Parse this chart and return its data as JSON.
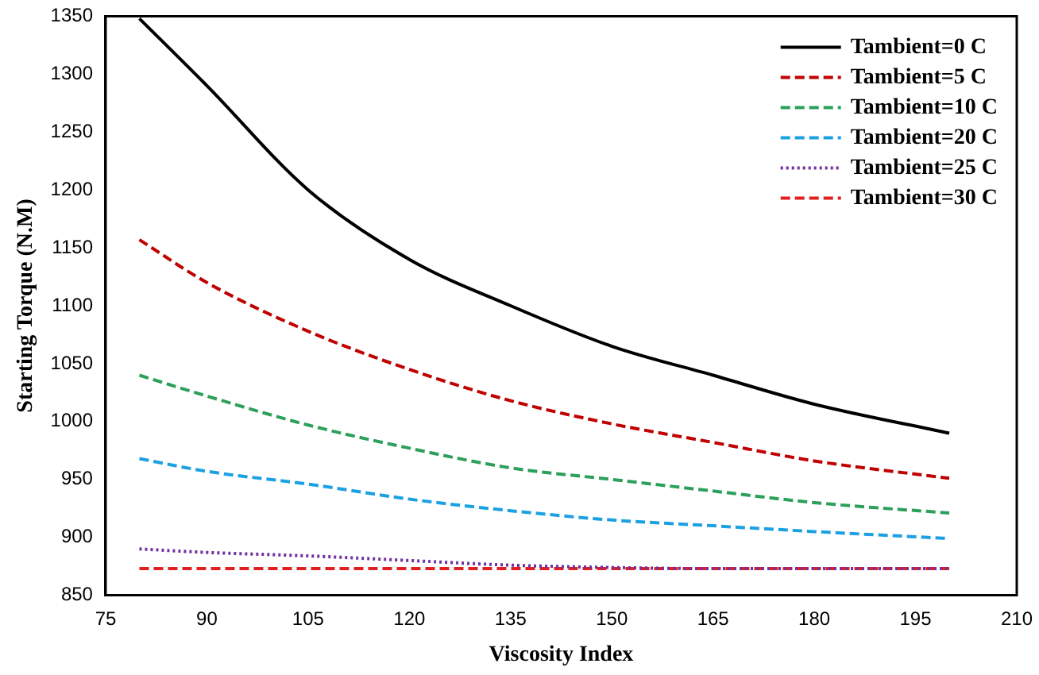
{
  "chart_data": {
    "type": "line",
    "xlabel": "Viscosity Index",
    "ylabel": "Starting Torque (N.M)",
    "x": [
      80,
      90,
      105,
      120,
      135,
      150,
      165,
      180,
      200
    ],
    "xlim": [
      75,
      210
    ],
    "xticks": [
      75,
      90,
      105,
      120,
      135,
      150,
      165,
      180,
      195,
      210
    ],
    "ylim": [
      850,
      1350
    ],
    "yticks": [
      850,
      900,
      950,
      1000,
      1050,
      1100,
      1150,
      1200,
      1250,
      1300,
      1350
    ],
    "grid": false,
    "legend": "top right",
    "marker": "none",
    "series": [
      {
        "name": "Tambient=0 C",
        "color": "#000000",
        "line_style": "solid",
        "values": [
          1348,
          1290,
          1200,
          1140,
          1100,
          1065,
          1040,
          1015,
          990
        ]
      },
      {
        "name": "Tambient=5 C",
        "color": "#c00000",
        "line_style": "dashed",
        "values": [
          1157,
          1120,
          1078,
          1045,
          1018,
          998,
          982,
          966,
          951
        ]
      },
      {
        "name": "Tambient=10 C",
        "color": "#2ca05a",
        "line_style": "dashed",
        "values": [
          1040,
          1022,
          997,
          977,
          960,
          950,
          940,
          930,
          921
        ]
      },
      {
        "name": "Tambient=20 C",
        "color": "#1ba1e2",
        "line_style": "dashed",
        "values": [
          968,
          957,
          946,
          933,
          923,
          915,
          910,
          905,
          899
        ]
      },
      {
        "name": "Tambient=25 C",
        "color": "#7030a0",
        "line_style": "dotted",
        "values": [
          890,
          887,
          884,
          880,
          876,
          874,
          873,
          873,
          873
        ]
      },
      {
        "name": "Tambient=30 C",
        "color": "#e02020",
        "line_style": "dashed",
        "values": [
          873,
          873,
          873,
          873,
          873,
          873,
          873,
          873,
          873
        ]
      }
    ]
  }
}
